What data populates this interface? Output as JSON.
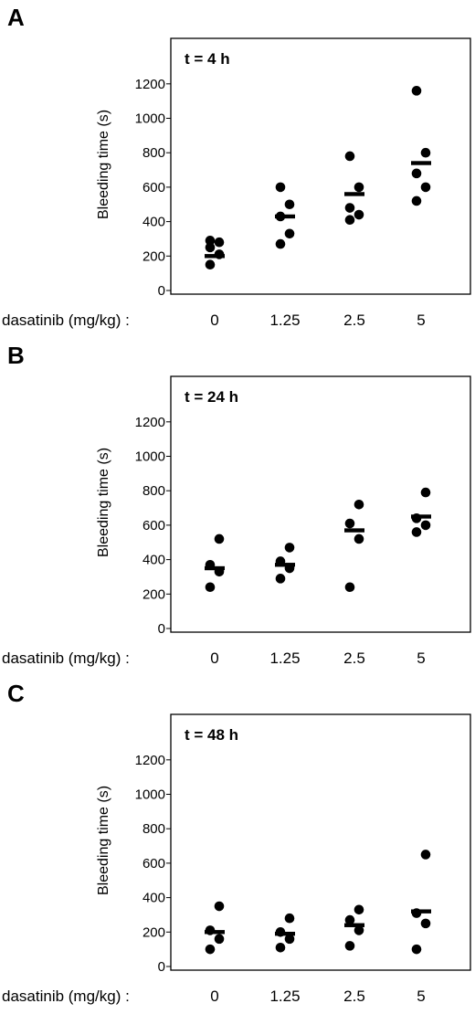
{
  "chart_data": [
    {
      "type": "scatter",
      "panel_label": "A",
      "title": "t = 4 h",
      "ylabel": "Bleeding time (s)",
      "xlabel": "dasatinib (mg/kg) :",
      "categories": [
        "0",
        "1.25",
        "2.5",
        "5"
      ],
      "yticks": [
        0,
        200,
        400,
        600,
        800,
        1000,
        1200
      ],
      "ylim": [
        0,
        1450
      ],
      "grid": false,
      "legend": "none",
      "points": [
        [
          150,
          210,
          250,
          280,
          290
        ],
        [
          270,
          330,
          430,
          500,
          600
        ],
        [
          410,
          440,
          480,
          600,
          780
        ],
        [
          520,
          600,
          680,
          800,
          1160
        ]
      ],
      "means": [
        200,
        430,
        560,
        740
      ]
    },
    {
      "type": "scatter",
      "panel_label": "B",
      "title": "t = 24 h",
      "ylabel": "Bleeding time (s)",
      "xlabel": "dasatinib (mg/kg) :",
      "categories": [
        "0",
        "1.25",
        "2.5",
        "5"
      ],
      "yticks": [
        0,
        200,
        400,
        600,
        800,
        1000,
        1200
      ],
      "ylim": [
        0,
        1450
      ],
      "grid": false,
      "legend": "none",
      "points": [
        [
          240,
          330,
          370,
          520
        ],
        [
          290,
          350,
          390,
          470
        ],
        [
          240,
          520,
          610,
          720
        ],
        [
          560,
          600,
          640,
          790
        ]
      ],
      "means": [
        350,
        370,
        570,
        650
      ]
    },
    {
      "type": "scatter",
      "panel_label": "C",
      "title": "t = 48 h",
      "ylabel": "Bleeding time (s)",
      "xlabel": "dasatinib (mg/kg) :",
      "categories": [
        "0",
        "1.25",
        "2.5",
        "5"
      ],
      "yticks": [
        0,
        200,
        400,
        600,
        800,
        1000,
        1200
      ],
      "ylim": [
        0,
        1450
      ],
      "grid": false,
      "legend": "none",
      "points": [
        [
          100,
          160,
          210,
          350
        ],
        [
          110,
          160,
          200,
          280
        ],
        [
          120,
          210,
          270,
          330
        ],
        [
          100,
          250,
          310,
          650
        ]
      ],
      "means": [
        200,
        190,
        240,
        320
      ]
    }
  ]
}
